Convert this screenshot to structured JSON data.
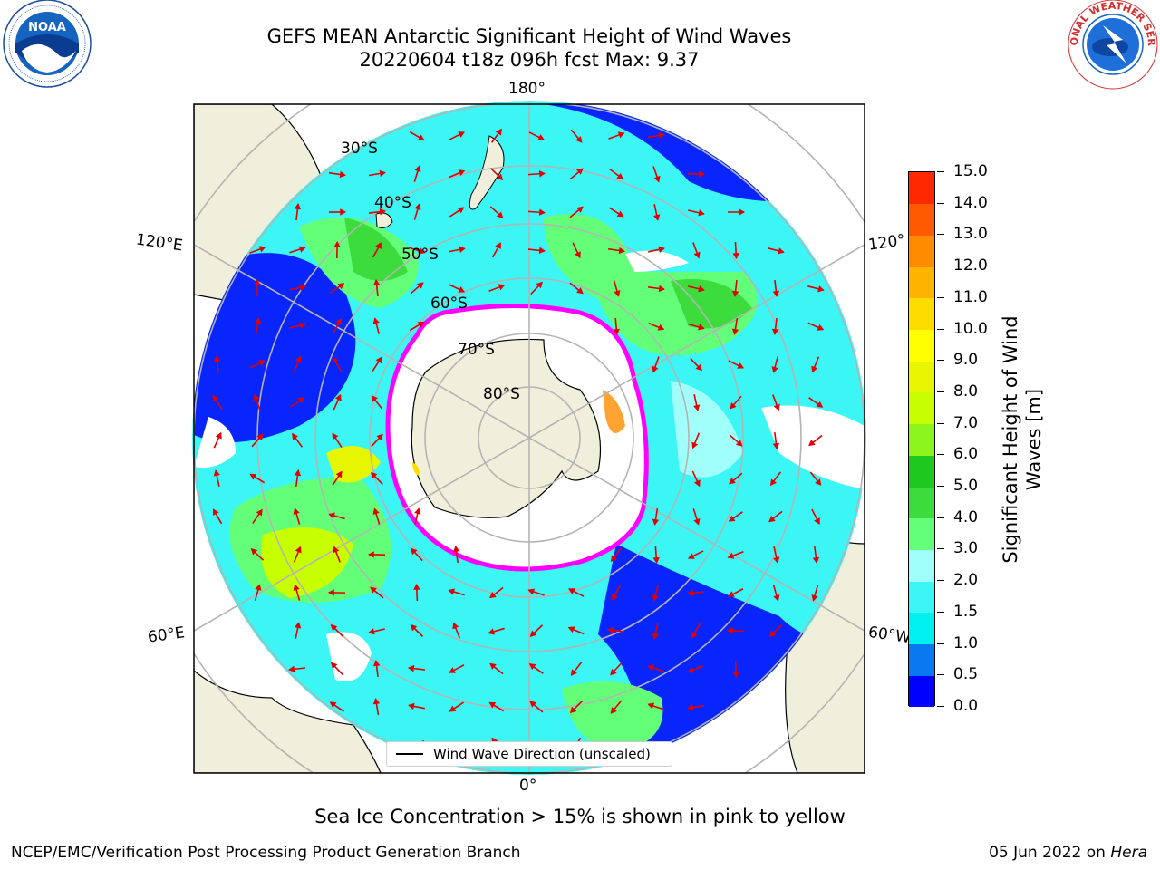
{
  "header": {
    "title_line1": "GEFS MEAN Antarctic Significant Height of Wind Waves",
    "title_line2": "20220604 t18z 096h fcst   Max: 9.37"
  },
  "logos": {
    "noaa_text": "NOAA",
    "nws_text": "NATIONAL WEATHER SERVICE"
  },
  "map": {
    "lon_labels": {
      "top": "180°",
      "bottom": "0°",
      "left_upper": "120°E",
      "left_lower": "60°E",
      "right_upper": "120°",
      "right_lower": "60°W"
    },
    "lat_labels": [
      "30°S",
      "40°S",
      "50°S",
      "60°S",
      "70°S",
      "80°S"
    ]
  },
  "legend": {
    "label": "Wind Wave Direction (unscaled)"
  },
  "colorbar": {
    "title": "Significant Height of Wind Waves [m]",
    "ticks": [
      "0.0",
      "0.5",
      "1.0",
      "1.5",
      "2.0",
      "3.0",
      "4.0",
      "5.0",
      "6.0",
      "7.0",
      "8.0",
      "9.0",
      "10.0",
      "11.0",
      "12.0",
      "13.0",
      "14.0",
      "15.0"
    ],
    "colors": [
      "#0000ff",
      "#0a78f0",
      "#00f0f0",
      "#3cf5f5",
      "#a0fffa",
      "#64ff78",
      "#3cdc3c",
      "#1ec81e",
      "#8cf51e",
      "#c8ff00",
      "#e6f500",
      "#ffff00",
      "#ffdc00",
      "#ffb400",
      "#ff8c00",
      "#ff5a00",
      "#ff2800"
    ],
    "ice_colors": {
      "low": "#ff00ff",
      "high": "#ffe000"
    }
  },
  "caption": "Sea Ice Concentration > 15% is shown in pink to yellow",
  "footer": {
    "left": "NCEP/EMC/Verification Post Processing Product Generation Branch",
    "right_date": "05 Jun 2022 on",
    "right_host": "Hera"
  }
}
